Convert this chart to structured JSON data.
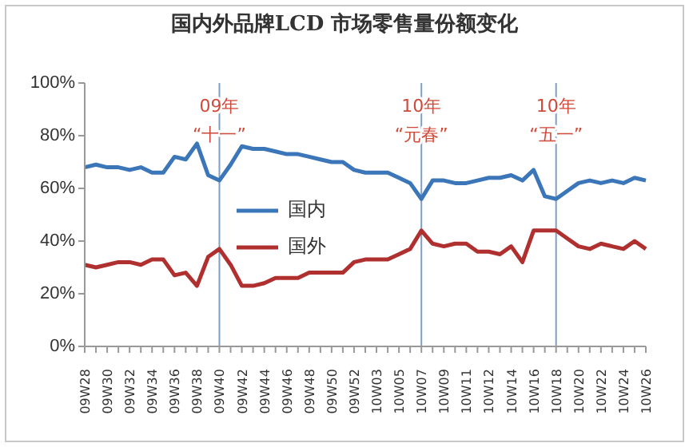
{
  "chart_data": {
    "type": "line",
    "title": "国内外品牌LCD 市场零售量份额变化",
    "categories": [
      "09W28",
      null,
      "09W30",
      null,
      "09W32",
      null,
      "09W34",
      null,
      "09W36",
      null,
      "09W38",
      null,
      "09W40",
      null,
      "09W42",
      null,
      "09W44",
      null,
      "09W46",
      null,
      "09W48",
      null,
      "09W50",
      null,
      "09W52",
      null,
      "10W03",
      null,
      "10W05",
      null,
      "10W07",
      null,
      "10W09",
      null,
      "10W11",
      null,
      "10W12",
      null,
      "10W14",
      null,
      "10W16",
      null,
      "10W18",
      null,
      "10W20",
      null,
      "10W22",
      null,
      "10W24",
      null,
      "10W26"
    ],
    "series": [
      {
        "name": "国内",
        "color": "#3b76b8",
        "values": [
          68,
          69,
          68,
          68,
          67,
          68,
          66,
          66,
          72,
          71,
          77,
          65,
          63,
          69,
          76,
          75,
          75,
          74,
          73,
          73,
          72,
          71,
          70,
          70,
          67,
          66,
          66,
          66,
          64,
          62,
          56,
          63,
          63,
          62,
          62,
          63,
          64,
          64,
          65,
          63,
          67,
          57,
          56,
          59,
          62,
          63,
          62,
          63,
          62,
          64,
          63
        ]
      },
      {
        "name": "国外",
        "color": "#b03030",
        "values": [
          31,
          30,
          31,
          32,
          32,
          31,
          33,
          33,
          27,
          28,
          23,
          34,
          37,
          31,
          23,
          23,
          24,
          26,
          26,
          26,
          28,
          28,
          28,
          28,
          32,
          33,
          33,
          33,
          35,
          37,
          44,
          39,
          38,
          39,
          39,
          36,
          36,
          35,
          38,
          32,
          44,
          44,
          44,
          41,
          38,
          37,
          39,
          38,
          37,
          40,
          37
        ]
      }
    ],
    "ylim": [
      0,
      100
    ],
    "yticks": [
      {
        "value": 0,
        "label": "0%"
      },
      {
        "value": 20,
        "label": "20%"
      },
      {
        "value": 40,
        "label": "40%"
      },
      {
        "value": 60,
        "label": "60%"
      },
      {
        "value": 80,
        "label": "80%"
      },
      {
        "value": 100,
        "label": "100%"
      }
    ],
    "ref_lines": [
      {
        "axis": "x",
        "value": "09W40",
        "label": "09年\n“十一”",
        "color": "#7f9fc4"
      },
      {
        "axis": "x",
        "value": "10W07",
        "label": "10年\n“元春”",
        "color": "#7f9fc4"
      },
      {
        "axis": "x",
        "value": "10W18",
        "label": "10年\n“五一”",
        "color": "#7f9fc4"
      }
    ],
    "legend": "center",
    "grid": false,
    "marker": "none",
    "line_style": "solid"
  }
}
